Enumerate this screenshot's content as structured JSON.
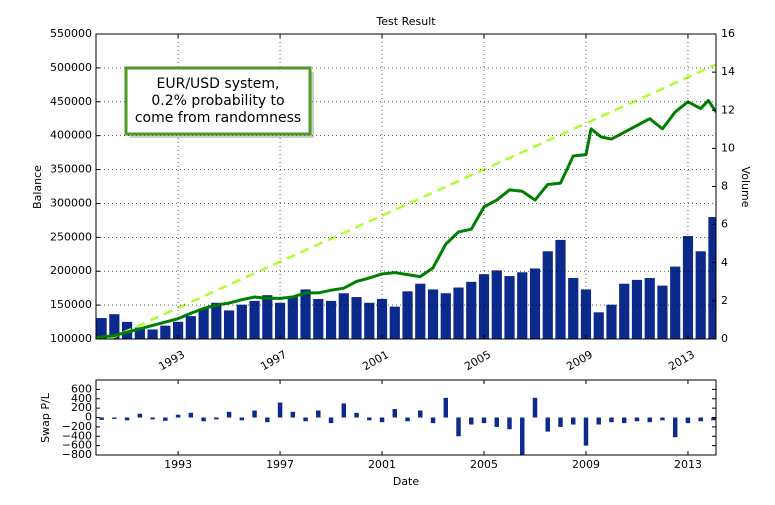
{
  "chart_data": [
    {
      "type": "combo",
      "title": "Test Result",
      "ylabel": "Balance",
      "y2label": "Volume",
      "annotation": [
        "EUR/USD system,",
        "0.2% probability to",
        "come from randomness"
      ],
      "xlim": [
        1989.78,
        2014.1
      ],
      "xticks": [
        1993,
        1997,
        2001,
        2005,
        2009,
        2013
      ],
      "ylim": [
        100000,
        550000
      ],
      "yticks": [
        100000,
        150000,
        200000,
        250000,
        300000,
        350000,
        400000,
        450000,
        500000,
        550000
      ],
      "y2lim": [
        0,
        16
      ],
      "y2ticks": [
        0,
        2,
        4,
        6,
        8,
        10,
        12,
        14,
        16
      ],
      "grid": true,
      "series": [
        {
          "type": "bar",
          "axis": "y2",
          "color": "#0b2a8c",
          "x": [
            1990.0,
            1990.5,
            1991.0,
            1991.5,
            1992.0,
            1992.5,
            1993.0,
            1993.5,
            1994.0,
            1994.5,
            1995.0,
            1995.5,
            1996.0,
            1996.5,
            1997.0,
            1997.5,
            1998.0,
            1998.5,
            1999.0,
            1999.5,
            2000.0,
            2000.5,
            2001.0,
            2001.5,
            2002.0,
            2002.5,
            2003.0,
            2003.5,
            2004.0,
            2004.5,
            2005.0,
            2005.5,
            2006.0,
            2006.5,
            2007.0,
            2007.5,
            2008.0,
            2008.5,
            2009.0,
            2009.5,
            2010.0,
            2010.5,
            2011.0,
            2011.5,
            2012.0,
            2012.5,
            2013.0,
            2013.5,
            2014.0
          ],
          "values": [
            1.1,
            1.3,
            0.9,
            0.6,
            0.5,
            0.7,
            0.9,
            1.2,
            1.6,
            1.9,
            1.5,
            1.8,
            2.0,
            2.3,
            1.9,
            2.2,
            2.6,
            2.1,
            2.0,
            2.4,
            2.2,
            1.9,
            2.1,
            1.7,
            2.5,
            2.9,
            2.6,
            2.4,
            2.7,
            3.0,
            3.4,
            3.6,
            3.3,
            3.5,
            3.7,
            4.6,
            5.2,
            3.2,
            2.6,
            1.4,
            1.8,
            2.9,
            3.1,
            3.2,
            2.8,
            3.8,
            5.4,
            4.6,
            6.4
          ]
        },
        {
          "type": "line",
          "color": "#adff2f",
          "linestyle": "dashed",
          "x": [
            1990.3,
            2014.1
          ],
          "values": [
            100000,
            505000
          ]
        },
        {
          "type": "line",
          "color": "#008000",
          "linestyle": "solid",
          "x": [
            1989.78,
            1990.5,
            1991.0,
            1991.5,
            1992.0,
            1992.5,
            1993.0,
            1993.5,
            1994.0,
            1994.5,
            1995.0,
            1995.5,
            1996.0,
            1996.5,
            1997.0,
            1997.5,
            1998.0,
            1998.5,
            1999.0,
            1999.5,
            2000.0,
            2000.5,
            2001.0,
            2001.5,
            2002.0,
            2002.5,
            2003.0,
            2003.5,
            2004.0,
            2004.5,
            2005.0,
            2005.5,
            2006.0,
            2006.5,
            2007.0,
            2007.5,
            2008.0,
            2008.5,
            2009.0,
            2009.2,
            2009.6,
            2010.0,
            2010.5,
            2011.0,
            2011.5,
            2012.0,
            2012.5,
            2013.0,
            2013.5,
            2013.8,
            2014.1
          ],
          "values": [
            102000,
            105000,
            110000,
            115000,
            120000,
            125000,
            130000,
            138000,
            145000,
            150000,
            153000,
            158000,
            162000,
            160000,
            160000,
            162000,
            168000,
            168000,
            172000,
            175000,
            185000,
            190000,
            196000,
            198000,
            195000,
            192000,
            205000,
            240000,
            258000,
            262000,
            295000,
            305000,
            320000,
            318000,
            305000,
            328000,
            330000,
            370000,
            372000,
            410000,
            398000,
            395000,
            405000,
            415000,
            425000,
            410000,
            435000,
            450000,
            440000,
            452000,
            435000
          ]
        }
      ]
    },
    {
      "type": "bar",
      "xlabel": "Date",
      "ylabel": "Swap P/L",
      "xlim": [
        1989.78,
        2014.1
      ],
      "xticks": [
        1993,
        1997,
        2001,
        2005,
        2009,
        2013
      ],
      "ylim": [
        -800,
        800
      ],
      "yticks": [
        {
          "value": -800,
          "label": "−800"
        },
        {
          "value": -600,
          "label": "−600"
        },
        {
          "value": -400,
          "label": "−400"
        },
        {
          "value": -200,
          "label": "−200"
        },
        0,
        200,
        400,
        600
      ],
      "color": "#0b2a8c",
      "x": [
        1990.0,
        1990.5,
        1991.0,
        1991.5,
        1992.0,
        1992.5,
        1993.0,
        1993.5,
        1994.0,
        1994.5,
        1995.0,
        1995.5,
        1996.0,
        1996.5,
        1997.0,
        1997.5,
        1998.0,
        1998.5,
        1999.0,
        1999.5,
        2000.0,
        2000.5,
        2001.0,
        2001.5,
        2002.0,
        2002.5,
        2003.0,
        2003.5,
        2004.0,
        2004.5,
        2005.0,
        2005.5,
        2006.0,
        2006.5,
        2007.0,
        2007.5,
        2008.0,
        2008.5,
        2009.0,
        2009.5,
        2010.0,
        2010.5,
        2011.0,
        2011.5,
        2012.0,
        2012.5,
        2013.0,
        2013.5,
        2014.0
      ],
      "values": [
        -50,
        -30,
        -60,
        80,
        -40,
        -70,
        60,
        100,
        -80,
        -40,
        120,
        -60,
        150,
        -100,
        320,
        120,
        -80,
        150,
        -120,
        300,
        100,
        -60,
        -100,
        180,
        -80,
        150,
        -120,
        420,
        -400,
        -150,
        -120,
        -200,
        -250,
        -800,
        420,
        -300,
        -200,
        -150,
        -600,
        -150,
        -100,
        -120,
        -80,
        -100,
        -60,
        -420,
        -120,
        -80,
        -60
      ]
    }
  ]
}
